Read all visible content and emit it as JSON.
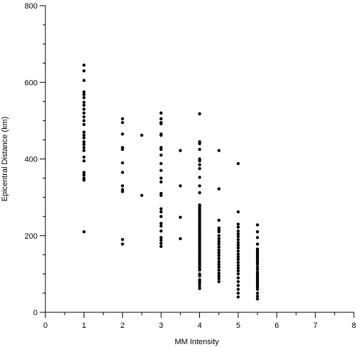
{
  "chart_data": {
    "type": "scatter",
    "title": "",
    "xlabel": "MM Intensity",
    "ylabel": "Epicentral Distance (km)",
    "xlim": [
      0,
      8
    ],
    "ylim": [
      0,
      800
    ],
    "x_ticks": [
      "0",
      "1",
      "2",
      "3",
      "4",
      "5",
      "6",
      "7",
      "8"
    ],
    "y_ticks": [
      "0",
      "200",
      "400",
      "600",
      "800"
    ],
    "grid": false,
    "legend": "none",
    "marker_color": "#000000",
    "points": [
      [
        1,
        645
      ],
      [
        1,
        630
      ],
      [
        1,
        605
      ],
      [
        1,
        575
      ],
      [
        1,
        568
      ],
      [
        1,
        560
      ],
      [
        1,
        548
      ],
      [
        1,
        540
      ],
      [
        1,
        530
      ],
      [
        1,
        520
      ],
      [
        1,
        510
      ],
      [
        1,
        500
      ],
      [
        1,
        490
      ],
      [
        1,
        470
      ],
      [
        1,
        462
      ],
      [
        1,
        455
      ],
      [
        1,
        445
      ],
      [
        1,
        438
      ],
      [
        1,
        430
      ],
      [
        1,
        422
      ],
      [
        1,
        405
      ],
      [
        1,
        395
      ],
      [
        1,
        365
      ],
      [
        1,
        358
      ],
      [
        1,
        350
      ],
      [
        1,
        345
      ],
      [
        1,
        210
      ],
      [
        2,
        505
      ],
      [
        2,
        495
      ],
      [
        2,
        465
      ],
      [
        2,
        430
      ],
      [
        2,
        425
      ],
      [
        2,
        390
      ],
      [
        2,
        365
      ],
      [
        2,
        330
      ],
      [
        2,
        320
      ],
      [
        2,
        315
      ],
      [
        2,
        190
      ],
      [
        2,
        178
      ],
      [
        2.5,
        462
      ],
      [
        2.5,
        305
      ],
      [
        3,
        520
      ],
      [
        3,
        505
      ],
      [
        3,
        495
      ],
      [
        3,
        492
      ],
      [
        3,
        465
      ],
      [
        3,
        462
      ],
      [
        3,
        430
      ],
      [
        3,
        425
      ],
      [
        3,
        410
      ],
      [
        3,
        388
      ],
      [
        3,
        370
      ],
      [
        3,
        350
      ],
      [
        3,
        340
      ],
      [
        3,
        310
      ],
      [
        3,
        305
      ],
      [
        3,
        270
      ],
      [
        3,
        262
      ],
      [
        3,
        250
      ],
      [
        3,
        232
      ],
      [
        3,
        225
      ],
      [
        3,
        212
      ],
      [
        3,
        195
      ],
      [
        3,
        188
      ],
      [
        3,
        180
      ],
      [
        3,
        172
      ],
      [
        3.5,
        422
      ],
      [
        3.5,
        330
      ],
      [
        3.5,
        248
      ],
      [
        3.5,
        192
      ],
      [
        4,
        518
      ],
      [
        4,
        445
      ],
      [
        4,
        440
      ],
      [
        4,
        425
      ],
      [
        4,
        400
      ],
      [
        4,
        395
      ],
      [
        4,
        385
      ],
      [
        4,
        375
      ],
      [
        4,
        352
      ],
      [
        4,
        330
      ],
      [
        4,
        312
      ],
      [
        4,
        280
      ],
      [
        4,
        275
      ],
      [
        4,
        270
      ],
      [
        4,
        265
      ],
      [
        4,
        260
      ],
      [
        4,
        255
      ],
      [
        4,
        250
      ],
      [
        4,
        245
      ],
      [
        4,
        240
      ],
      [
        4,
        235
      ],
      [
        4,
        230
      ],
      [
        4,
        225
      ],
      [
        4,
        220
      ],
      [
        4,
        215
      ],
      [
        4,
        210
      ],
      [
        4,
        205
      ],
      [
        4,
        200
      ],
      [
        4,
        195
      ],
      [
        4,
        190
      ],
      [
        4,
        185
      ],
      [
        4,
        180
      ],
      [
        4,
        175
      ],
      [
        4,
        170
      ],
      [
        4,
        165
      ],
      [
        4,
        160
      ],
      [
        4,
        155
      ],
      [
        4,
        150
      ],
      [
        4,
        145
      ],
      [
        4,
        140
      ],
      [
        4,
        135
      ],
      [
        4,
        130
      ],
      [
        4,
        125
      ],
      [
        4,
        120
      ],
      [
        4,
        115
      ],
      [
        4,
        110
      ],
      [
        4,
        100
      ],
      [
        4,
        95
      ],
      [
        4,
        85
      ],
      [
        4,
        80
      ],
      [
        4,
        75
      ],
      [
        4,
        68
      ],
      [
        4,
        62
      ],
      [
        4.5,
        422
      ],
      [
        4.5,
        322
      ],
      [
        4.5,
        240
      ],
      [
        4.5,
        220
      ],
      [
        4.5,
        215
      ],
      [
        4.5,
        210
      ],
      [
        4.5,
        200
      ],
      [
        4.5,
        192
      ],
      [
        4.5,
        185
      ],
      [
        4.5,
        178
      ],
      [
        4.5,
        170
      ],
      [
        4.5,
        162
      ],
      [
        4.5,
        155
      ],
      [
        4.5,
        148
      ],
      [
        4.5,
        140
      ],
      [
        4.5,
        132
      ],
      [
        4.5,
        125
      ],
      [
        4.5,
        118
      ],
      [
        4.5,
        110
      ],
      [
        4.5,
        102
      ],
      [
        4.5,
        95
      ],
      [
        4.5,
        88
      ],
      [
        4.5,
        80
      ],
      [
        5,
        388
      ],
      [
        5,
        262
      ],
      [
        5,
        230
      ],
      [
        5,
        222
      ],
      [
        5,
        212
      ],
      [
        5,
        205
      ],
      [
        5,
        198
      ],
      [
        5,
        190
      ],
      [
        5,
        182
      ],
      [
        5,
        175
      ],
      [
        5,
        168
      ],
      [
        5,
        160
      ],
      [
        5,
        152
      ],
      [
        5,
        145
      ],
      [
        5,
        138
      ],
      [
        5,
        130
      ],
      [
        5,
        122
      ],
      [
        5,
        115
      ],
      [
        5,
        108
      ],
      [
        5,
        100
      ],
      [
        5,
        90
      ],
      [
        5,
        80
      ],
      [
        5,
        70
      ],
      [
        5,
        60
      ],
      [
        5,
        50
      ],
      [
        5,
        40
      ],
      [
        5.5,
        228
      ],
      [
        5.5,
        210
      ],
      [
        5.5,
        195
      ],
      [
        5.5,
        178
      ],
      [
        5.5,
        165
      ],
      [
        5.5,
        160
      ],
      [
        5.5,
        155
      ],
      [
        5.5,
        150
      ],
      [
        5.5,
        145
      ],
      [
        5.5,
        140
      ],
      [
        5.5,
        135
      ],
      [
        5.5,
        130
      ],
      [
        5.5,
        125
      ],
      [
        5.5,
        118
      ],
      [
        5.5,
        112
      ],
      [
        5.5,
        105
      ],
      [
        5.5,
        100
      ],
      [
        5.5,
        95
      ],
      [
        5.5,
        90
      ],
      [
        5.5,
        85
      ],
      [
        5.5,
        80
      ],
      [
        5.5,
        75
      ],
      [
        5.5,
        70
      ],
      [
        5.5,
        65
      ],
      [
        5.5,
        60
      ],
      [
        5.5,
        50
      ],
      [
        5.5,
        42
      ],
      [
        5.5,
        35
      ]
    ]
  }
}
